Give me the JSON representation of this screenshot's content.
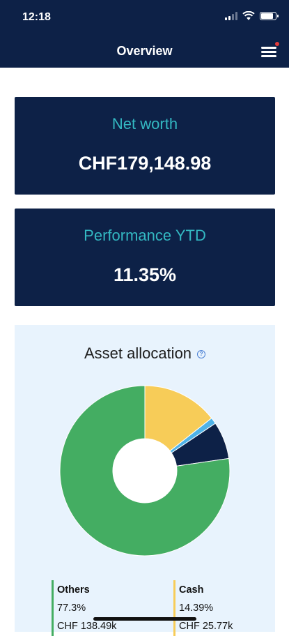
{
  "status": {
    "time": "12:18"
  },
  "header": {
    "title": "Overview",
    "menu_icon": "hamburger-menu-icon",
    "notification_color": "#e23b3b"
  },
  "net_worth": {
    "label": "Net worth",
    "value": "CHF179,148.98"
  },
  "performance": {
    "label": "Performance YTD",
    "value": "11.35%"
  },
  "asset_allocation": {
    "title": "Asset allocation",
    "help_icon": "question-circle-icon",
    "legend": [
      {
        "name": "Others",
        "percent": "77.3%",
        "amount": "CHF 138.49k",
        "color": "#44ad62"
      },
      {
        "name": "Cash",
        "percent": "14.39%",
        "amount": "CHF 25.77k",
        "color": "#f7cc58"
      }
    ]
  },
  "chart_data": {
    "type": "pie",
    "donut": true,
    "slices": [
      {
        "name": "Cash",
        "value": 14.39,
        "color": "#f7cc58"
      },
      {
        "name": "",
        "value": 1.21,
        "color": "#4fb3e8"
      },
      {
        "name": "",
        "value": 7.1,
        "color": "#0d2147"
      },
      {
        "name": "Others",
        "value": 77.3,
        "color": "#44ad62"
      }
    ]
  },
  "colors": {
    "navy": "#0d2147",
    "teal": "#33b8c2",
    "panel": "#e8f3fd"
  }
}
